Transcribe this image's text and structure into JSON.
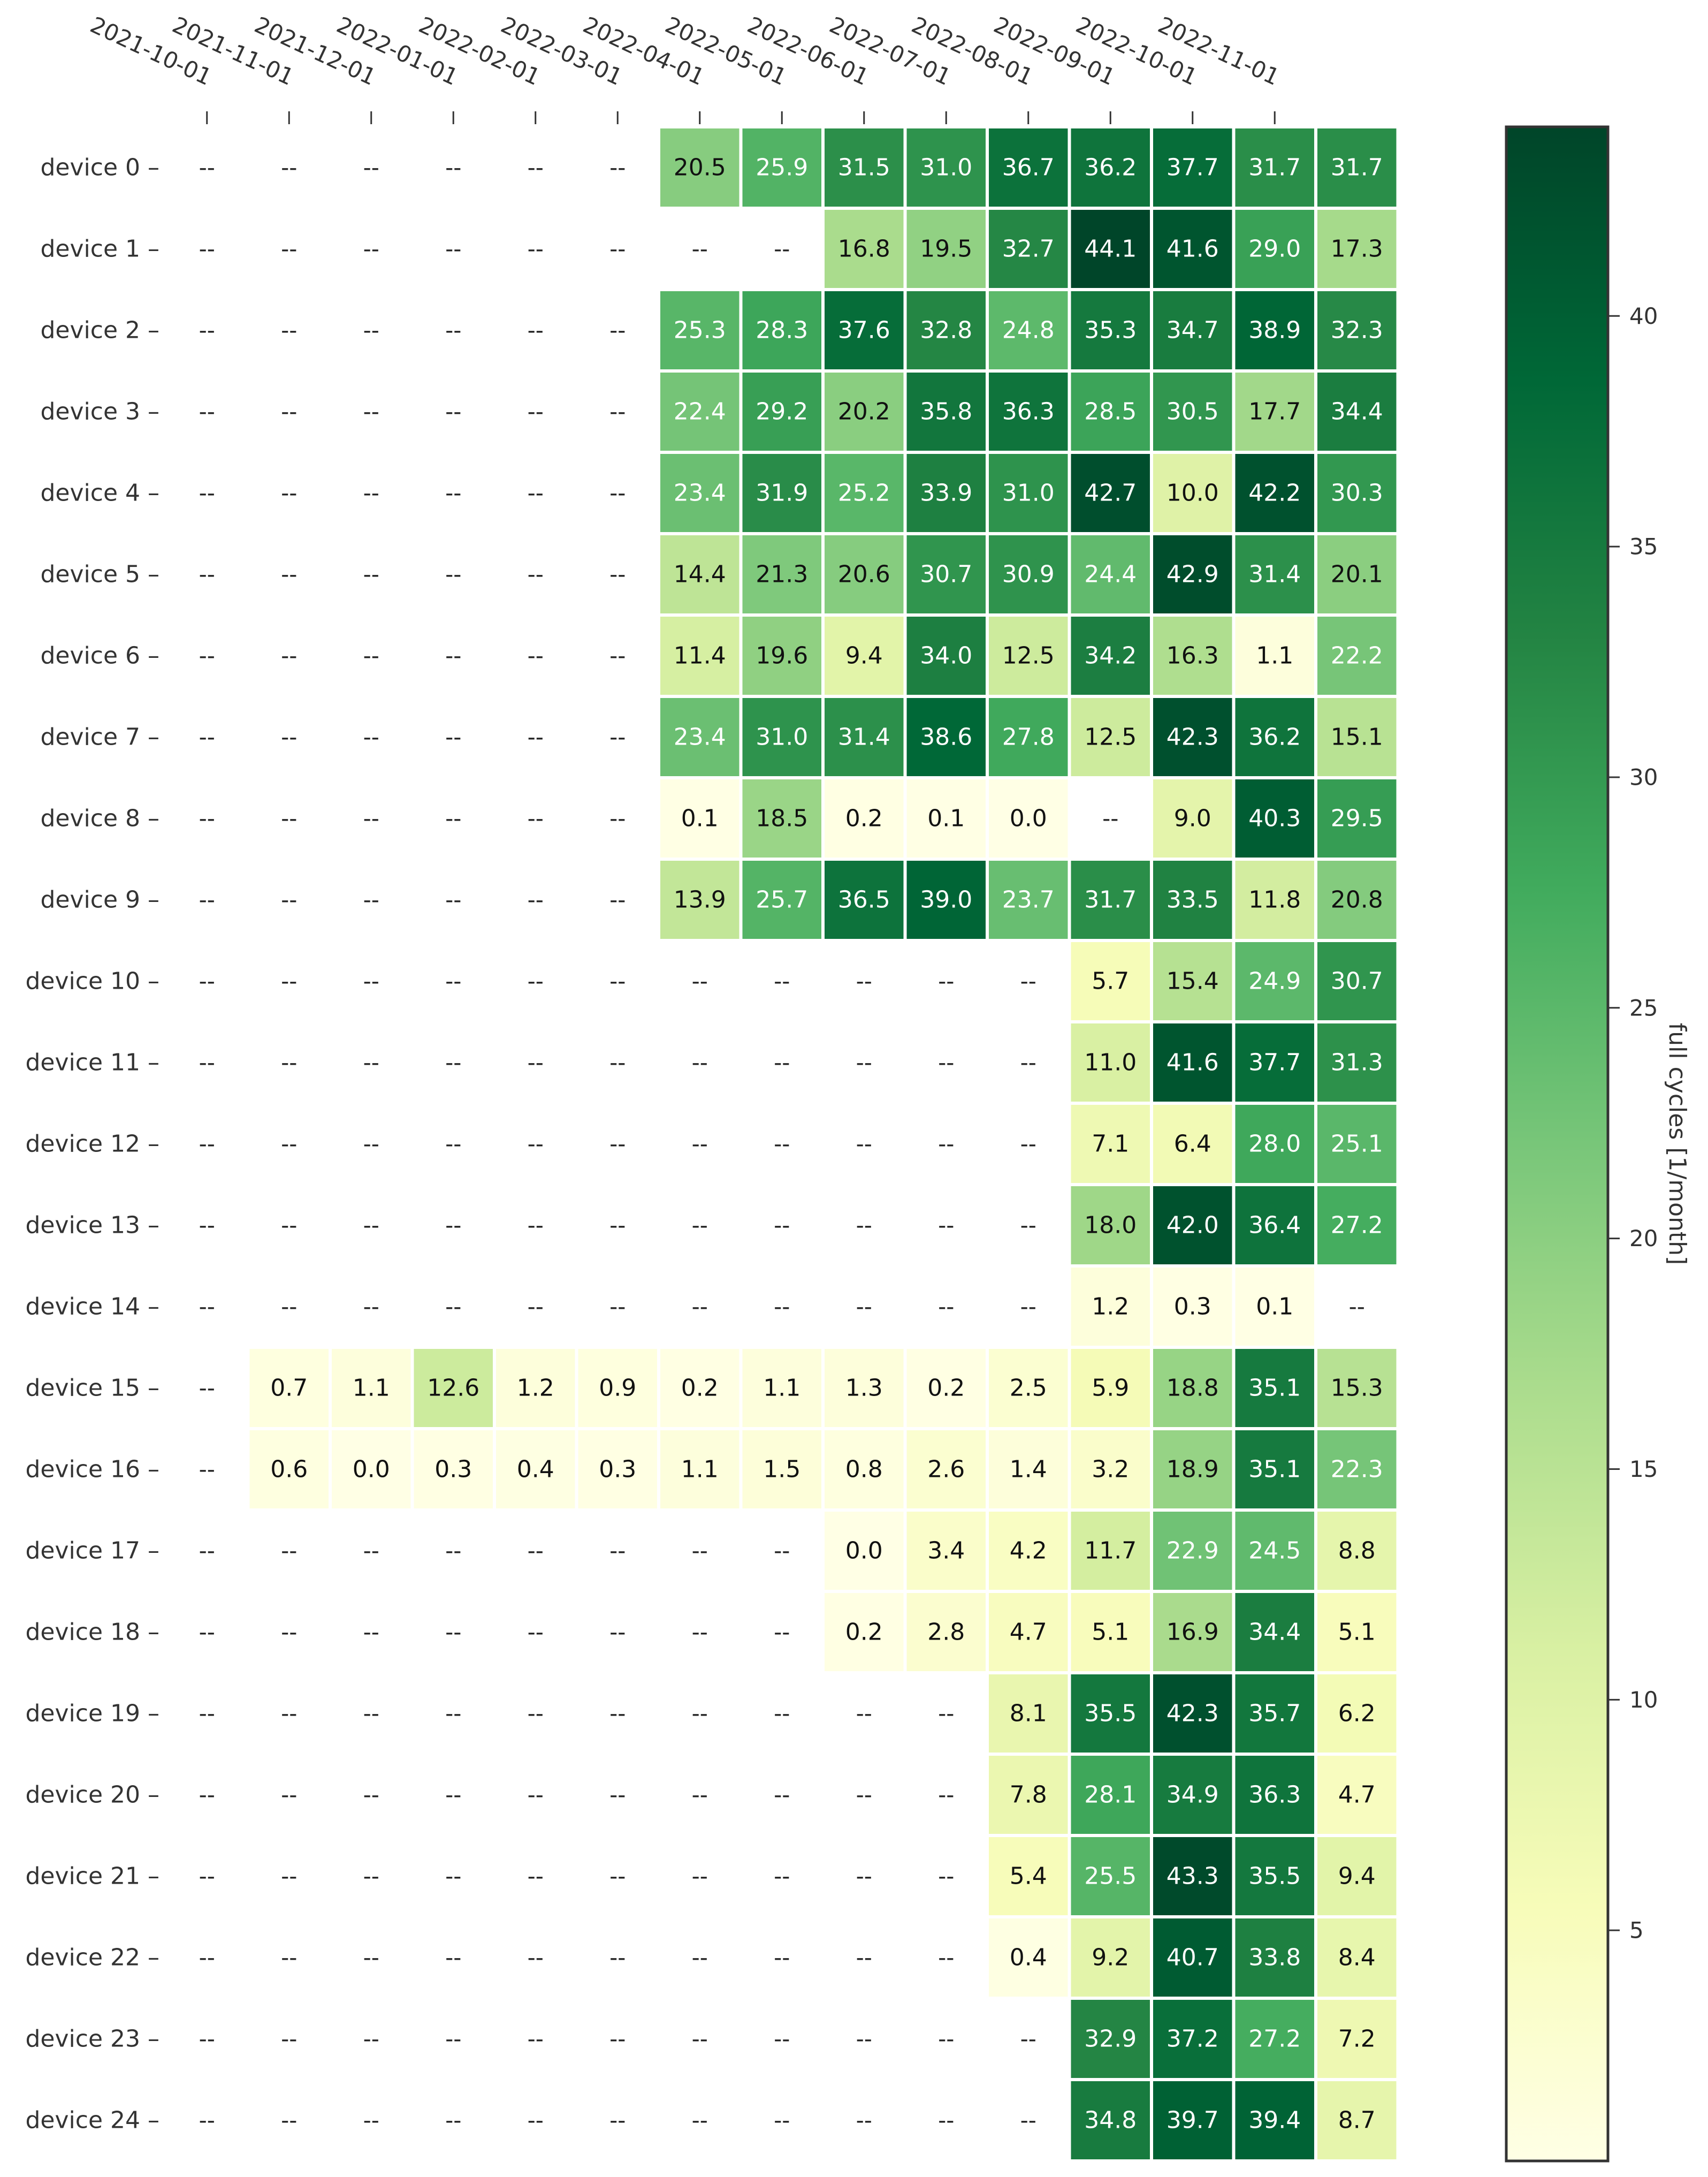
{
  "chart_data": {
    "type": "heatmap",
    "title": "",
    "xlabel": "",
    "ylabel": "",
    "columns": [
      "2021-10-01",
      "2021-11-01",
      "2021-12-01",
      "2022-01-01",
      "2022-02-01",
      "2022-03-01",
      "2022-04-01",
      "2022-05-01",
      "2022-06-01",
      "2022-07-01",
      "2022-08-01",
      "2022-09-01",
      "2022-10-01",
      "2022-11-01"
    ],
    "rows": [
      "device 0",
      "device 1",
      "device 2",
      "device 3",
      "device 4",
      "device 5",
      "device 6",
      "device 7",
      "device 8",
      "device 9",
      "device 10",
      "device 11",
      "device 12",
      "device 13",
      "device 14",
      "device 15",
      "device 16",
      "device 17",
      "device 18",
      "device 19",
      "device 20",
      "device 21",
      "device 22",
      "device 23",
      "device 24"
    ],
    "missing_label": "--",
    "values": [
      [
        null,
        null,
        null,
        null,
        null,
        null,
        20.5,
        25.9,
        31.5,
        31.0,
        36.7,
        36.2,
        37.7,
        31.7
      ],
      [
        null,
        null,
        null,
        null,
        null,
        null,
        null,
        null,
        16.8,
        19.5,
        32.7,
        44.1,
        41.6,
        29.0
      ],
      [
        null,
        null,
        null,
        null,
        null,
        null,
        25.3,
        28.3,
        37.6,
        32.8,
        24.8,
        35.3,
        34.7,
        38.9
      ],
      [
        null,
        null,
        null,
        null,
        null,
        null,
        22.4,
        29.2,
        20.2,
        35.8,
        36.3,
        28.5,
        30.5,
        17.7
      ],
      [
        null,
        null,
        null,
        null,
        null,
        null,
        23.4,
        31.9,
        25.2,
        33.9,
        31.0,
        42.7,
        10.0,
        42.2
      ],
      [
        null,
        null,
        null,
        null,
        null,
        null,
        14.4,
        21.3,
        20.6,
        30.7,
        30.9,
        24.4,
        42.9,
        31.4
      ],
      [
        null,
        null,
        null,
        null,
        null,
        null,
        11.4,
        19.6,
        9.4,
        34.0,
        12.5,
        34.2,
        16.3,
        1.1
      ],
      [
        null,
        null,
        null,
        null,
        null,
        null,
        23.4,
        31.0,
        31.4,
        38.6,
        27.8,
        12.5,
        42.3,
        36.2
      ],
      [
        null,
        null,
        null,
        null,
        null,
        null,
        0.1,
        18.5,
        0.2,
        0.1,
        0.0,
        null,
        9.0,
        40.3
      ],
      [
        null,
        null,
        null,
        null,
        null,
        null,
        13.9,
        25.7,
        36.5,
        39.0,
        23.7,
        31.7,
        33.5,
        11.8
      ],
      [
        null,
        null,
        null,
        null,
        null,
        null,
        null,
        null,
        null,
        null,
        null,
        5.7,
        15.4,
        24.9
      ],
      [
        null,
        null,
        null,
        null,
        null,
        null,
        null,
        null,
        null,
        null,
        null,
        11.0,
        41.6,
        37.7
      ],
      [
        null,
        null,
        null,
        null,
        null,
        null,
        null,
        null,
        null,
        null,
        null,
        7.1,
        6.4,
        28.0
      ],
      [
        null,
        null,
        null,
        null,
        null,
        null,
        null,
        null,
        null,
        null,
        null,
        18.0,
        42.0,
        36.4
      ],
      [
        null,
        null,
        null,
        null,
        null,
        null,
        null,
        null,
        null,
        null,
        null,
        1.2,
        0.3,
        0.1
      ],
      [
        null,
        0.7,
        1.1,
        12.6,
        1.2,
        0.9,
        0.2,
        1.1,
        1.3,
        0.2,
        2.5,
        5.9,
        18.8,
        35.1
      ],
      [
        null,
        0.6,
        0.0,
        0.3,
        0.4,
        0.3,
        1.1,
        1.5,
        0.8,
        2.6,
        1.4,
        3.2,
        18.9,
        35.1
      ],
      [
        null,
        null,
        null,
        null,
        null,
        null,
        null,
        null,
        0.0,
        3.4,
        4.2,
        11.7,
        22.9,
        24.5
      ],
      [
        null,
        null,
        null,
        null,
        null,
        null,
        null,
        null,
        0.2,
        2.8,
        4.7,
        5.1,
        16.9,
        34.4
      ],
      [
        null,
        null,
        null,
        null,
        null,
        null,
        null,
        null,
        null,
        null,
        8.1,
        35.5,
        42.3,
        35.7
      ],
      [
        null,
        null,
        null,
        null,
        null,
        null,
        null,
        null,
        null,
        null,
        7.8,
        28.1,
        34.9,
        36.3
      ],
      [
        null,
        null,
        null,
        null,
        null,
        null,
        null,
        null,
        null,
        null,
        5.4,
        25.5,
        43.3,
        35.5
      ],
      [
        null,
        null,
        null,
        null,
        null,
        null,
        null,
        null,
        null,
        null,
        0.4,
        9.2,
        40.7,
        33.8
      ],
      [
        null,
        null,
        null,
        null,
        null,
        null,
        null,
        null,
        null,
        null,
        null,
        32.9,
        37.2,
        27.2
      ],
      [
        null,
        null,
        null,
        null,
        null,
        null,
        null,
        null,
        null,
        null,
        null,
        34.8,
        39.7,
        39.4
      ]
    ],
    "last_column_values": [
      31.7,
      17.3,
      32.3,
      34.4,
      30.3,
      20.1,
      22.2,
      15.1,
      29.5,
      20.8,
      30.7,
      31.3,
      25.1,
      27.2,
      null,
      15.3,
      22.3,
      8.8,
      5.1,
      6.2,
      4.7,
      9.4,
      8.4,
      7.2,
      8.7
    ],
    "colorbar": {
      "label": "full cycles [1/month]",
      "vmin": 0.0,
      "vmax": 44.1,
      "ticks": [
        5,
        10,
        15,
        20,
        25,
        30,
        35,
        40
      ],
      "colormap": "YlGn",
      "colors": [
        "#ffffe5",
        "#f7fcb9",
        "#d9f0a3",
        "#addd8e",
        "#78c679",
        "#41ab5d",
        "#238443",
        "#006837",
        "#004529"
      ]
    }
  }
}
